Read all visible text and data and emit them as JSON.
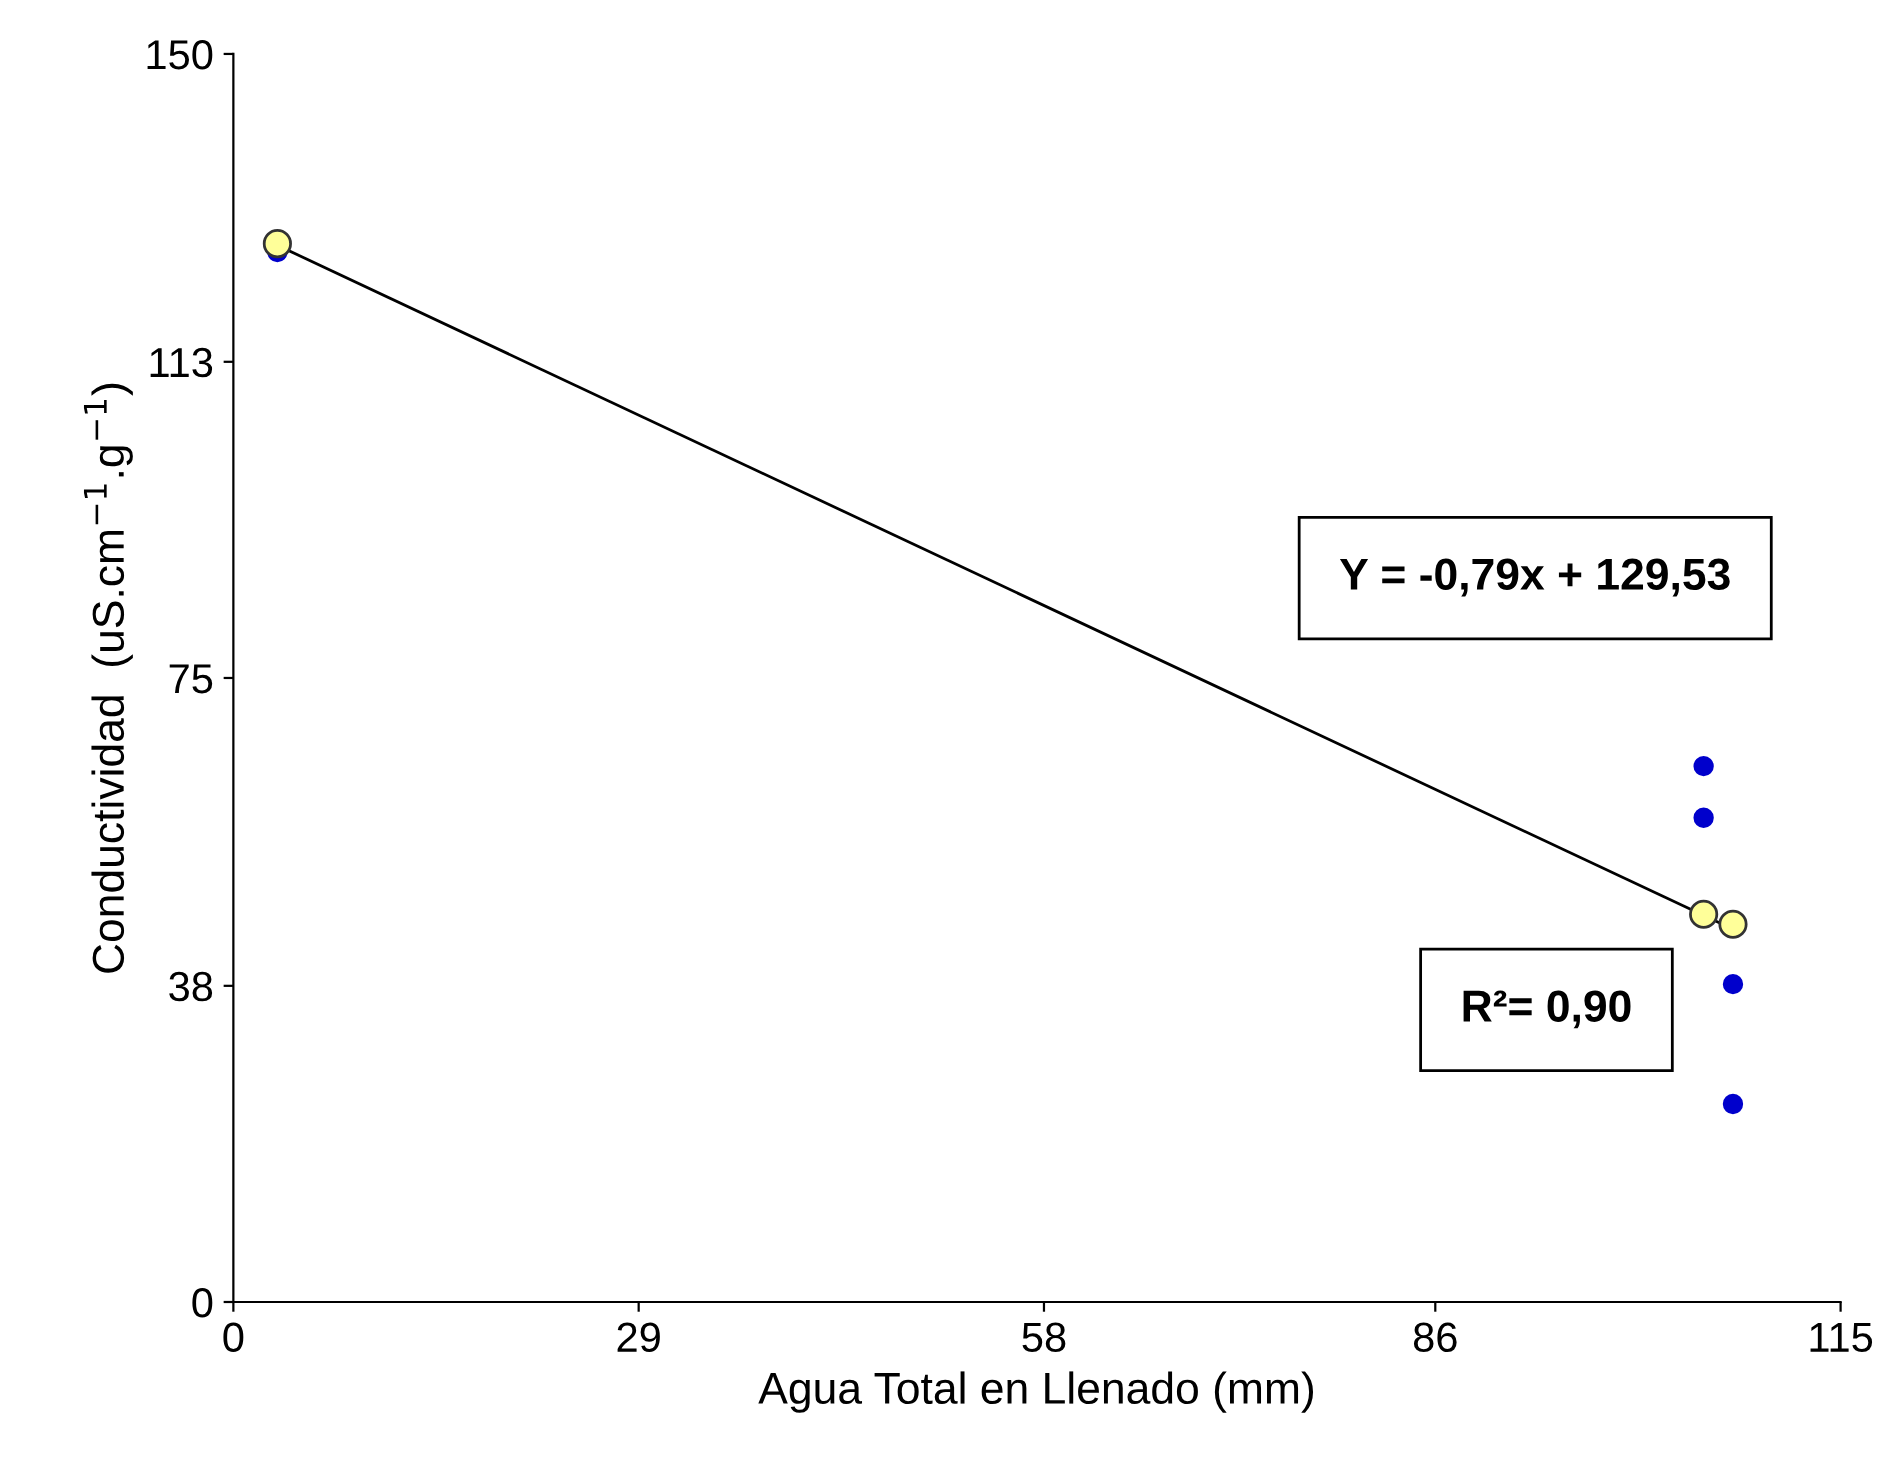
{
  "chart_data": {
    "type": "scatter",
    "xlabel": "Agua Total en Llenado (mm)",
    "ylabel": "Conductividad  (uS.cm$^{−1}$.g$^{−1}$)",
    "series": [
      {
        "color": "#0000cc",
        "x": [
          3.15,
          105.2,
          105.2,
          107.3,
          107.3
        ],
        "values": [
          126.2,
          64.4,
          58.2,
          38.2,
          23.8
        ]
      },
      {
        "type": "line",
        "color": "#000000",
        "x": [
          3.15,
          107.3
        ],
        "values": [
          127.0,
          44.8
        ],
        "marker": "none"
      },
      {
        "color": "#ffff99",
        "x": [
          3.15,
          105.2,
          107.3
        ],
        "values": [
          127.2,
          46.6,
          45.4
        ]
      }
    ],
    "annotations": [
      "Y = -0,79x + 129,53",
      "R²= 0,90"
    ],
    "xlim": [
      0,
      115
    ],
    "xticks": [
      0,
      29,
      58,
      86,
      115
    ],
    "ylim": [
      0,
      150
    ],
    "yticks": [
      0,
      38,
      75,
      113,
      150
    ],
    "grid": false,
    "legend": false,
    "marker": "circle"
  }
}
